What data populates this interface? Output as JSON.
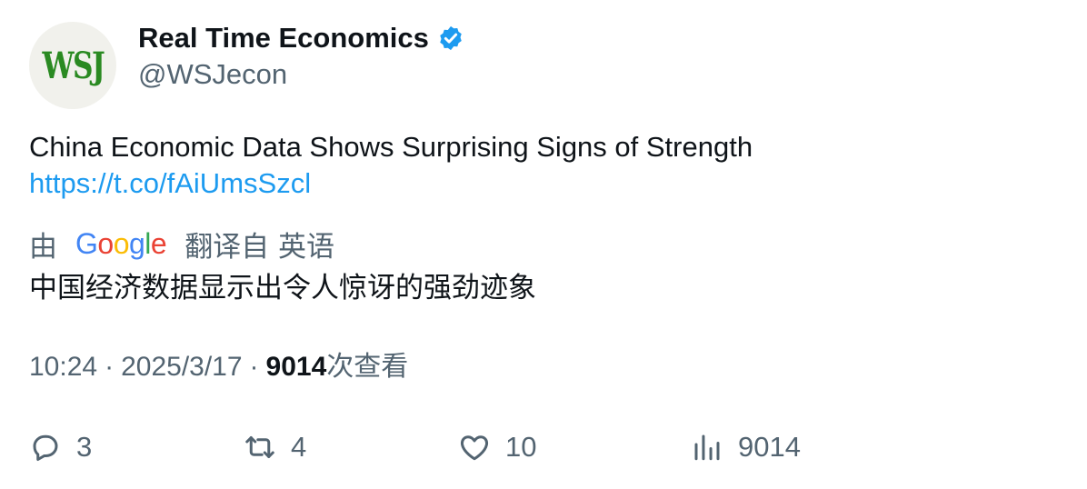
{
  "author": {
    "avatar_text": "WSJ",
    "display_name": "Real Time Economics",
    "handle": "@WSJecon",
    "verified": true,
    "verified_color": "#1d9bf0"
  },
  "tweet": {
    "text": "China Economic Data Shows Surprising Signs of Strength",
    "link": "https://t.co/fAiUmsSzcl"
  },
  "translation": {
    "prefix": "由",
    "provider_logo": "Google",
    "source_label": "翻译自 英语",
    "translated_text": "中国经济数据显示出令人惊讶的强劲迹象"
  },
  "meta": {
    "time": "10:24",
    "date": "2025/3/17",
    "separator": "·",
    "views_count": "9014",
    "views_label": "次查看"
  },
  "actions": {
    "reply": {
      "icon": "reply-icon",
      "count": "3"
    },
    "retweet": {
      "icon": "retweet-icon",
      "count": "4"
    },
    "like": {
      "icon": "heart-icon",
      "count": "10"
    },
    "views": {
      "icon": "analytics-icon",
      "count": "9014"
    }
  },
  "colors": {
    "text_primary": "#0f1419",
    "text_secondary": "#536471",
    "link": "#1d9bf0",
    "avatar_bg": "#f1f1ec",
    "avatar_fg": "#2a8a22"
  }
}
